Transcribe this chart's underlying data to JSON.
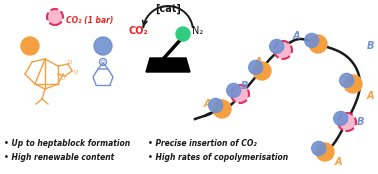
{
  "bg_color": "#ffffff",
  "black": "#1a1a1a",
  "orange": "#f5a040",
  "blue": "#7090d0",
  "pink_face": "#f8b8d0",
  "pink_edge": "#e0306080",
  "green": "#30cc80",
  "red": "#ee2222",
  "cat_text": "[cat]",
  "co2_text": "CO₂",
  "co2_label": "CO₂ (1 bar)",
  "n2_text": "N₂",
  "bullets": [
    "• Up to heptablock formation",
    "• High renewable content",
    "• Precise insertion of CO₂",
    "• High rates of copolymerisation"
  ]
}
